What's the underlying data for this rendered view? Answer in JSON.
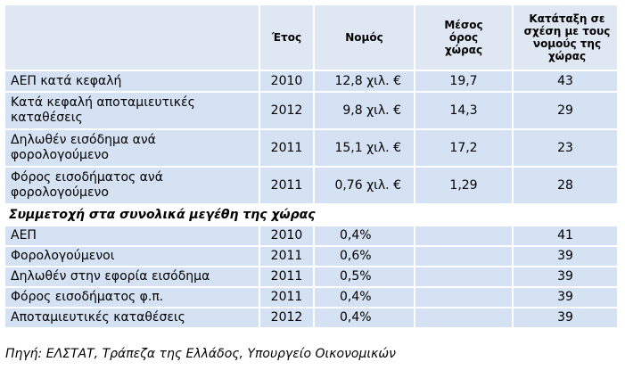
{
  "table": {
    "header": [
      "Έτος",
      "Νομός",
      "Μέσος όρος χώρας",
      "Κατάταξη σε σχέση με τους νομούς της χώρας"
    ],
    "rows": [
      [
        "ΑΕΠ κατά κεφαλή",
        "2010",
        "12,8 χιλ. €",
        "19,7",
        "43"
      ],
      [
        "Κατά κεφαλή αποταμιευτικές καταθέσεις",
        "2012",
        "9,8 χιλ. €",
        "14,3",
        "29"
      ],
      [
        "Δηλωθέν εισόδημα ανά φορολογούμενο",
        "2011",
        "15,1 χιλ. €",
        "17,2",
        "23"
      ],
      [
        "Φόρος εισοδήματος ανά φορολογούμενο",
        "2011",
        "0,76 χιλ. €",
        "1,29",
        "28"
      ]
    ],
    "section": "Συμμετοχή στα συνολικά μεγέθη της χώρας",
    "section_rows": [
      [
        "ΑΕΠ",
        "2010",
        "0,4%",
        "41"
      ],
      [
        "Φορολογούμενοι",
        "2011",
        "0,6%",
        "39"
      ],
      [
        "Δηλωθέν στην εφορία εισόδημα",
        "2011",
        "0,5%",
        "39"
      ],
      [
        "Φόρος εισοδήματος φ.π.",
        "2011",
        "0,4%",
        "39"
      ],
      [
        "Αποταμιευτικές καταθέσεις",
        "2012",
        "0,4%",
        "39"
      ]
    ]
  },
  "source": "Πηγή: ΕΛΣΤΑΤ, Τράπεζα της Ελλάδος, Υπουργείο Οικονομικών"
}
